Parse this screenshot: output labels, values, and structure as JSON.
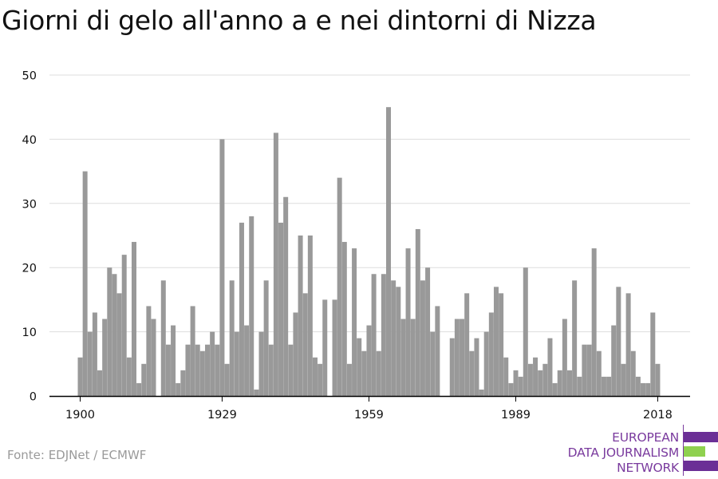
{
  "title": "Giorni di gelo all'anno a e nei dintorni di Nizza",
  "source": "Fonte: EDJNet / ECMWF",
  "logo": {
    "line1": "EUROPEAN",
    "line2": "DATA JOURNALISM",
    "line3": "NETWORK",
    "colors": {
      "purple": "#6b2f96",
      "green": "#8fd14f",
      "text": "#7a3b9e"
    }
  },
  "colors": {
    "bar": "#999999",
    "grid": "#dddddd",
    "axis": "#000000"
  },
  "chart_data": {
    "type": "bar",
    "title": "Giorni di gelo all'anno a e nei dintorni di Nizza",
    "xlabel": "",
    "ylabel": "",
    "ylim": [
      0,
      50
    ],
    "yticks": [
      0,
      10,
      20,
      30,
      40,
      50
    ],
    "xticks": [
      1900,
      1929,
      1959,
      1989,
      2018
    ],
    "grid": true,
    "legend": "none",
    "x": [
      1900,
      1901,
      1902,
      1903,
      1904,
      1905,
      1906,
      1907,
      1908,
      1909,
      1910,
      1911,
      1912,
      1913,
      1914,
      1915,
      1916,
      1917,
      1918,
      1919,
      1920,
      1921,
      1922,
      1923,
      1924,
      1925,
      1926,
      1927,
      1928,
      1929,
      1930,
      1931,
      1932,
      1933,
      1934,
      1935,
      1936,
      1937,
      1938,
      1939,
      1940,
      1941,
      1942,
      1943,
      1944,
      1945,
      1946,
      1947,
      1948,
      1949,
      1950,
      1951,
      1952,
      1953,
      1954,
      1955,
      1956,
      1957,
      1958,
      1959,
      1960,
      1961,
      1962,
      1963,
      1964,
      1965,
      1966,
      1967,
      1968,
      1969,
      1970,
      1971,
      1972,
      1973,
      1974,
      1975,
      1976,
      1977,
      1978,
      1979,
      1980,
      1981,
      1982,
      1983,
      1984,
      1985,
      1986,
      1987,
      1988,
      1989,
      1990,
      1991,
      1992,
      1993,
      1994,
      1995,
      1996,
      1997,
      1998,
      1999,
      2000,
      2001,
      2002,
      2003,
      2004,
      2005,
      2006,
      2007,
      2008,
      2009,
      2010,
      2011,
      2012,
      2013,
      2014,
      2015,
      2016,
      2017,
      2018,
      2019
    ],
    "values": [
      6,
      35,
      10,
      13,
      4,
      12,
      20,
      19,
      16,
      22,
      6,
      24,
      2,
      5,
      14,
      12,
      0,
      18,
      8,
      11,
      2,
      4,
      8,
      14,
      8,
      7,
      8,
      10,
      8,
      40,
      5,
      18,
      10,
      27,
      11,
      28,
      1,
      10,
      18,
      8,
      41,
      27,
      31,
      8,
      13,
      25,
      16,
      25,
      6,
      5,
      15,
      0,
      15,
      34,
      24,
      5,
      23,
      9,
      7,
      11,
      19,
      7,
      19,
      45,
      18,
      17,
      12,
      23,
      12,
      26,
      18,
      20,
      10,
      14,
      0,
      0,
      9,
      12,
      12,
      16,
      7,
      9,
      1,
      10,
      13,
      17,
      16,
      6,
      2,
      4,
      3,
      20,
      5,
      6,
      4,
      5,
      9,
      2,
      4,
      12,
      4,
      18,
      3,
      8,
      8,
      23,
      7,
      3,
      3,
      11,
      17,
      5,
      16,
      7,
      3,
      2,
      2,
      13,
      5,
      0
    ]
  }
}
